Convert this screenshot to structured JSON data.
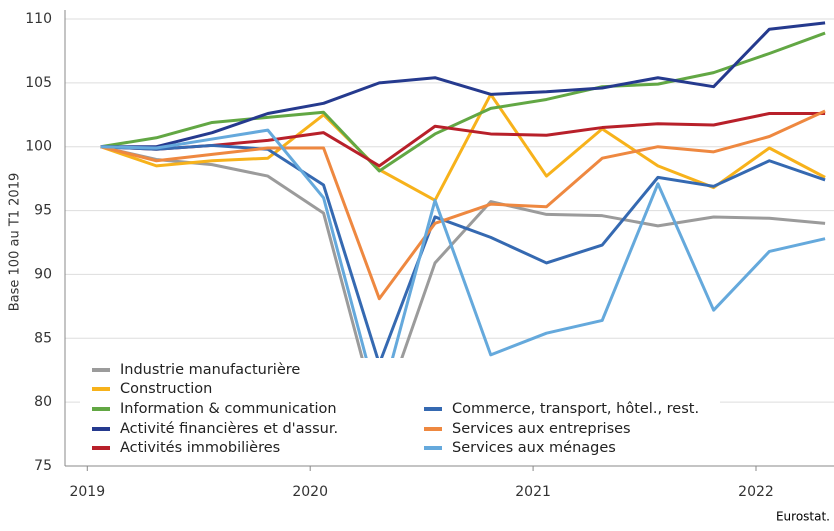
{
  "chart_data": {
    "type": "line",
    "y_label": "Base 100 au T1 2019",
    "source": "Eurostat.",
    "x": [
      2019.06,
      2019.31,
      2019.56,
      2019.81,
      2020.06,
      2020.31,
      2020.56,
      2020.81,
      2021.06,
      2021.31,
      2021.56,
      2021.81,
      2022.06,
      2022.31
    ],
    "xlim": [
      2018.9,
      2022.35
    ],
    "xticks": [
      2019,
      2020,
      2021,
      2022
    ],
    "ylim": [
      75,
      110
    ],
    "yticks": [
      75,
      80,
      85,
      90,
      95,
      100,
      105,
      110
    ],
    "grid": true,
    "legend": "lower left",
    "series": [
      {
        "name": "Industrie manufacturière",
        "color": "#9b9b9b",
        "values": [
          100,
          99.0,
          98.6,
          97.7,
          94.8,
          78.4,
          90.9,
          95.7,
          94.7,
          94.6,
          93.8,
          94.5,
          94.4,
          94.0
        ]
      },
      {
        "name": "Construction",
        "color": "#f7b21b",
        "values": [
          100,
          98.5,
          98.9,
          99.1,
          102.5,
          98.2,
          95.8,
          104.1,
          97.7,
          101.4,
          98.5,
          96.8,
          99.9,
          97.6
        ]
      },
      {
        "name": "Information & communication",
        "color": "#62a744",
        "values": [
          100,
          100.7,
          101.9,
          102.3,
          102.7,
          98.1,
          101.0,
          103.0,
          103.7,
          104.7,
          104.9,
          105.8,
          107.3,
          108.9
        ]
      },
      {
        "name": "Activité financières et d'assur.",
        "color": "#253a8e",
        "values": [
          100,
          100.0,
          101.1,
          102.6,
          103.4,
          105.0,
          105.4,
          104.1,
          104.3,
          104.6,
          105.4,
          104.7,
          109.2,
          109.7
        ]
      },
      {
        "name": "Activités immobilières",
        "color": "#b8202a",
        "values": [
          100,
          99.8,
          100.1,
          100.5,
          101.1,
          98.5,
          101.6,
          101.0,
          100.9,
          101.5,
          101.8,
          101.7,
          102.6,
          102.6
        ]
      },
      {
        "name": "Commerce, transport, hôtel., rest.",
        "color": "#3569b1",
        "values": [
          100,
          99.8,
          100.1,
          99.8,
          97.0,
          83.0,
          94.5,
          92.9,
          90.9,
          92.3,
          97.6,
          96.9,
          98.9,
          97.4
        ]
      },
      {
        "name": "Services aux entreprises",
        "color": "#ee8840",
        "values": [
          100,
          98.9,
          99.4,
          99.9,
          99.9,
          88.1,
          94.0,
          95.5,
          95.3,
          99.1,
          100.0,
          99.6,
          100.8,
          102.8
        ]
      },
      {
        "name": "Services aux ménages",
        "color": "#65a9dc",
        "values": [
          100,
          99.9,
          100.6,
          101.3,
          96.0,
          79.6,
          95.8,
          83.7,
          85.4,
          86.4,
          97.1,
          87.2,
          91.8,
          92.8
        ]
      }
    ]
  }
}
